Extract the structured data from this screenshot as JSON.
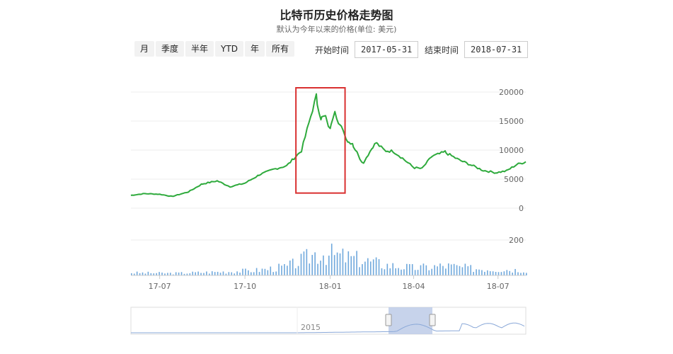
{
  "header": {
    "title": "比特币历史价格走势图",
    "subtitle": "默认为今年以来的价格(单位: 美元)"
  },
  "range_buttons": [
    "月",
    "季度",
    "半年",
    "YTD",
    "年",
    "所有"
  ],
  "date_range": {
    "start_label": "开始时间",
    "start_value": "2017-05-31",
    "end_label": "结束时间",
    "end_value": "2018-07-31"
  },
  "colors": {
    "price_line": "#2eaa3c",
    "volume_bar": "#6fa8dc",
    "highlight_box": "#d93030",
    "navigator_mask": "#b9c8e6"
  },
  "chart_data": [
    {
      "type": "line",
      "title": "",
      "x": [
        "2017-05-31",
        "2017-06-15",
        "2017-07-01",
        "2017-07-15",
        "2017-08-01",
        "2017-08-15",
        "2017-09-01",
        "2017-09-15",
        "2017-10-01",
        "2017-10-15",
        "2017-11-01",
        "2017-11-15",
        "2017-12-01",
        "2017-12-07",
        "2017-12-17",
        "2017-12-22",
        "2017-12-27",
        "2018-01-01",
        "2018-01-06",
        "2018-01-10",
        "2018-01-15",
        "2018-01-20",
        "2018-01-25",
        "2018-02-01",
        "2018-02-06",
        "2018-02-15",
        "2018-02-20",
        "2018-03-01",
        "2018-03-10",
        "2018-03-20",
        "2018-04-01",
        "2018-04-10",
        "2018-04-20",
        "2018-05-05",
        "2018-05-20",
        "2018-06-01",
        "2018-06-15",
        "2018-06-29",
        "2018-07-10",
        "2018-07-20",
        "2018-07-31"
      ],
      "y": [
        2200,
        2500,
        2400,
        2000,
        2800,
        4100,
        4700,
        3700,
        4300,
        5600,
        6700,
        7300,
        9900,
        13500,
        19300,
        15500,
        15800,
        13500,
        17000,
        14500,
        13600,
        11500,
        11200,
        9000,
        7700,
        10300,
        11300,
        9900,
        9800,
        8600,
        7000,
        6800,
        8800,
        9700,
        8300,
        7500,
        6500,
        6100,
        6400,
        7400,
        8000
      ],
      "ylim": [
        0,
        20000
      ],
      "y_ticks": [
        0,
        5000,
        10000,
        15000,
        20000
      ],
      "x_tick_labels": [
        "17-07",
        "17-10",
        "18-01",
        "18-04",
        "18-07"
      ],
      "x_tick_dates": [
        "2017-07-01",
        "2017-10-01",
        "2018-01-01",
        "2018-04-01",
        "2018-07-01"
      ],
      "annotation": {
        "type": "highlight-box",
        "from": "2017-11-25",
        "to": "2018-01-17",
        "ymin": 2600,
        "ymax": 20000
      }
    },
    {
      "type": "bar",
      "title": "",
      "x_start": "2017-05-31",
      "x_end": "2018-07-31",
      "ylim": [
        0,
        200
      ],
      "y_ticks": [
        200
      ],
      "volume_profile_dates": [
        "2017-05-31",
        "2017-07-15",
        "2017-09-15",
        "2017-10-15",
        "2017-11-15",
        "2017-12-01",
        "2017-12-17",
        "2018-01-01",
        "2018-01-10",
        "2018-02-01",
        "2018-03-01",
        "2018-04-01",
        "2018-05-05",
        "2018-06-01",
        "2018-07-31"
      ],
      "volume_profile_values": [
        15,
        12,
        22,
        30,
        50,
        85,
        130,
        120,
        110,
        90,
        60,
        42,
        55,
        40,
        30
      ]
    }
  ],
  "navigator": {
    "label": "2015"
  }
}
